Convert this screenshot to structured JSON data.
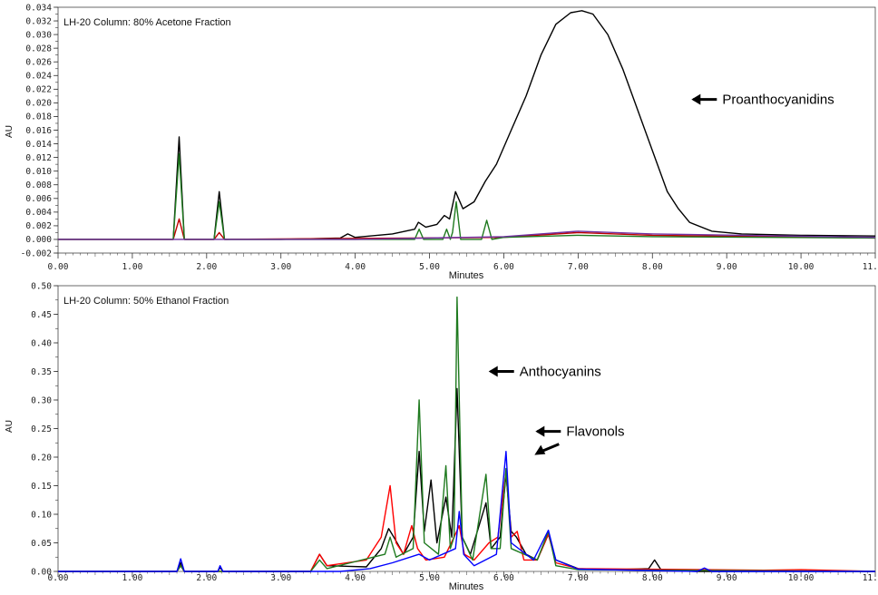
{
  "chart_data": [
    {
      "type": "line",
      "title": "LH-20 Column: 80% Acetone Fraction",
      "xlabel": "Minutes",
      "ylabel": "AU",
      "xlim": [
        0,
        11
      ],
      "ylim": [
        -0.002,
        0.034
      ],
      "x_ticks": [
        "0.00",
        "1.00",
        "2.00",
        "3.00",
        "4.00",
        "5.00",
        "6.00",
        "7.00",
        "8.00",
        "9.00",
        "10.00",
        "11.00"
      ],
      "y_ticks": [
        "-0.002",
        "0.000",
        "0.002",
        "0.004",
        "0.006",
        "0.008",
        "0.010",
        "0.012",
        "0.014",
        "0.016",
        "0.018",
        "0.020",
        "0.022",
        "0.024",
        "0.026",
        "0.028",
        "0.030",
        "0.032",
        "0.034"
      ],
      "grid": false,
      "series": [
        {
          "color": "#000000",
          "points": [
            [
              0,
              0.0
            ],
            [
              1.3,
              0.0
            ],
            [
              1.55,
              0.0
            ],
            [
              1.63,
              0.015
            ],
            [
              1.7,
              0.0
            ],
            [
              2.1,
              0.0
            ],
            [
              2.17,
              0.007
            ],
            [
              2.24,
              0.0
            ],
            [
              3.0,
              0.0
            ],
            [
              3.8,
              0.0002
            ],
            [
              3.9,
              0.0008
            ],
            [
              4.0,
              0.0003
            ],
            [
              4.5,
              0.0008
            ],
            [
              4.8,
              0.0015
            ],
            [
              4.85,
              0.0025
            ],
            [
              4.95,
              0.0018
            ],
            [
              5.1,
              0.0022
            ],
            [
              5.2,
              0.0035
            ],
            [
              5.27,
              0.003
            ],
            [
              5.35,
              0.007
            ],
            [
              5.45,
              0.0045
            ],
            [
              5.6,
              0.0055
            ],
            [
              5.75,
              0.0085
            ],
            [
              5.9,
              0.011
            ],
            [
              6.1,
              0.016
            ],
            [
              6.3,
              0.021
            ],
            [
              6.5,
              0.027
            ],
            [
              6.7,
              0.0315
            ],
            [
              6.9,
              0.0332
            ],
            [
              7.05,
              0.0335
            ],
            [
              7.2,
              0.033
            ],
            [
              7.4,
              0.03
            ],
            [
              7.6,
              0.025
            ],
            [
              7.8,
              0.019
            ],
            [
              8.0,
              0.013
            ],
            [
              8.2,
              0.007
            ],
            [
              8.35,
              0.0045
            ],
            [
              8.5,
              0.0025
            ],
            [
              8.8,
              0.0012
            ],
            [
              9.2,
              0.0008
            ],
            [
              10.0,
              0.0006
            ],
            [
              11.0,
              0.0005
            ]
          ]
        },
        {
          "color": "#c00000",
          "points": [
            [
              0,
              0.0
            ],
            [
              1.55,
              0.0
            ],
            [
              1.63,
              0.003
            ],
            [
              1.7,
              0.0
            ],
            [
              2.1,
              0.0
            ],
            [
              2.17,
              0.001
            ],
            [
              2.24,
              0.0
            ],
            [
              6.0,
              0.0003
            ],
            [
              7.0,
              0.001
            ],
            [
              8.0,
              0.0006
            ],
            [
              11.0,
              0.0002
            ]
          ]
        },
        {
          "color": "#1f7a1f",
          "points": [
            [
              0,
              0.0
            ],
            [
              1.55,
              0.0
            ],
            [
              1.63,
              0.0125
            ],
            [
              1.7,
              0.0
            ],
            [
              2.1,
              0.0
            ],
            [
              2.17,
              0.0055
            ],
            [
              2.24,
              0.0
            ],
            [
              4.8,
              0.0
            ],
            [
              4.86,
              0.0015
            ],
            [
              4.92,
              0.0
            ],
            [
              5.18,
              0.0
            ],
            [
              5.23,
              0.0015
            ],
            [
              5.28,
              0.0
            ],
            [
              5.31,
              0.001
            ],
            [
              5.36,
              0.0055
            ],
            [
              5.42,
              0.0
            ],
            [
              5.7,
              0.0
            ],
            [
              5.77,
              0.0028
            ],
            [
              5.84,
              0.0
            ],
            [
              6.0,
              0.0003
            ],
            [
              7.0,
              0.0006
            ],
            [
              8.0,
              0.0004
            ],
            [
              11.0,
              0.0002
            ]
          ]
        },
        {
          "color": "#7030a0",
          "points": [
            [
              0,
              0.0
            ],
            [
              4.0,
              0.0
            ],
            [
              6.0,
              0.0004
            ],
            [
              7.0,
              0.0012
            ],
            [
              8.0,
              0.0008
            ],
            [
              11.0,
              0.0003
            ]
          ]
        }
      ]
    },
    {
      "type": "line",
      "title": "LH-20 Column: 50% Ethanol Fraction",
      "xlabel": "Minutes",
      "ylabel": "AU",
      "xlim": [
        0,
        11
      ],
      "ylim": [
        0,
        0.5
      ],
      "x_ticks": [
        "0.00",
        "1.00",
        "2.00",
        "3.00",
        "4.00",
        "5.00",
        "6.00",
        "7.00",
        "8.00",
        "9.00",
        "10.00",
        "11.00"
      ],
      "y_ticks": [
        "0.00",
        "0.05",
        "0.10",
        "0.15",
        "0.20",
        "0.25",
        "0.30",
        "0.35",
        "0.40",
        "0.45",
        "0.50"
      ],
      "grid": false,
      "series": [
        {
          "color": "#000000",
          "points": [
            [
              0,
              0.0
            ],
            [
              1.6,
              0.0
            ],
            [
              1.65,
              0.015
            ],
            [
              1.7,
              0.0
            ],
            [
              2.15,
              0.0
            ],
            [
              2.18,
              0.007
            ],
            [
              2.22,
              0.0
            ],
            [
              3.4,
              0.0
            ],
            [
              3.52,
              0.03
            ],
            [
              3.62,
              0.01
            ],
            [
              4.15,
              0.008
            ],
            [
              4.35,
              0.04
            ],
            [
              4.45,
              0.075
            ],
            [
              4.52,
              0.06
            ],
            [
              4.65,
              0.03
            ],
            [
              4.78,
              0.06
            ],
            [
              4.86,
              0.21
            ],
            [
              4.93,
              0.07
            ],
            [
              5.02,
              0.16
            ],
            [
              5.1,
              0.05
            ],
            [
              5.22,
              0.13
            ],
            [
              5.3,
              0.06
            ],
            [
              5.37,
              0.32
            ],
            [
              5.44,
              0.06
            ],
            [
              5.55,
              0.03
            ],
            [
              5.76,
              0.12
            ],
            [
              5.83,
              0.04
            ],
            [
              5.95,
              0.06
            ],
            [
              6.03,
              0.17
            ],
            [
              6.1,
              0.07
            ],
            [
              6.17,
              0.06
            ],
            [
              6.3,
              0.03
            ],
            [
              6.45,
              0.02
            ],
            [
              6.6,
              0.065
            ],
            [
              6.7,
              0.02
            ],
            [
              7.0,
              0.005
            ],
            [
              7.5,
              0.003
            ],
            [
              7.95,
              0.005
            ],
            [
              8.03,
              0.02
            ],
            [
              8.12,
              0.002
            ],
            [
              8.6,
              0.0
            ],
            [
              11.0,
              0.0
            ]
          ]
        },
        {
          "color": "#ff0000",
          "points": [
            [
              0,
              0.0
            ],
            [
              1.6,
              0.0
            ],
            [
              1.65,
              0.01
            ],
            [
              1.7,
              0.0
            ],
            [
              3.4,
              0.0
            ],
            [
              3.52,
              0.03
            ],
            [
              3.62,
              0.01
            ],
            [
              4.15,
              0.02
            ],
            [
              4.35,
              0.06
            ],
            [
              4.47,
              0.15
            ],
            [
              4.55,
              0.05
            ],
            [
              4.65,
              0.03
            ],
            [
              4.76,
              0.08
            ],
            [
              4.84,
              0.04
            ],
            [
              4.95,
              0.02
            ],
            [
              5.2,
              0.025
            ],
            [
              5.33,
              0.06
            ],
            [
              5.4,
              0.08
            ],
            [
              5.47,
              0.03
            ],
            [
              5.6,
              0.02
            ],
            [
              5.8,
              0.05
            ],
            [
              5.92,
              0.06
            ],
            [
              6.03,
              0.175
            ],
            [
              6.1,
              0.06
            ],
            [
              6.18,
              0.07
            ],
            [
              6.27,
              0.02
            ],
            [
              6.45,
              0.02
            ],
            [
              6.6,
              0.065
            ],
            [
              6.7,
              0.015
            ],
            [
              7.0,
              0.005
            ],
            [
              9.5,
              0.002
            ],
            [
              10.0,
              0.003
            ],
            [
              11.0,
              0.0
            ]
          ]
        },
        {
          "color": "#1f7a1f",
          "points": [
            [
              0,
              0.0
            ],
            [
              1.6,
              0.0
            ],
            [
              1.65,
              0.01
            ],
            [
              1.7,
              0.0
            ],
            [
              3.4,
              0.0
            ],
            [
              3.52,
              0.02
            ],
            [
              3.62,
              0.005
            ],
            [
              4.4,
              0.03
            ],
            [
              4.47,
              0.06
            ],
            [
              4.55,
              0.025
            ],
            [
              4.78,
              0.04
            ],
            [
              4.86,
              0.3
            ],
            [
              4.93,
              0.05
            ],
            [
              5.12,
              0.03
            ],
            [
              5.22,
              0.185
            ],
            [
              5.28,
              0.04
            ],
            [
              5.33,
              0.06
            ],
            [
              5.37,
              0.48
            ],
            [
              5.44,
              0.06
            ],
            [
              5.58,
              0.02
            ],
            [
              5.76,
              0.17
            ],
            [
              5.83,
              0.04
            ],
            [
              5.95,
              0.04
            ],
            [
              6.03,
              0.18
            ],
            [
              6.1,
              0.04
            ],
            [
              6.45,
              0.02
            ],
            [
              6.6,
              0.07
            ],
            [
              6.7,
              0.01
            ],
            [
              7.0,
              0.003
            ],
            [
              11.0,
              0.0
            ]
          ]
        },
        {
          "color": "#0000ff",
          "points": [
            [
              0,
              0.0
            ],
            [
              1.6,
              0.0
            ],
            [
              1.65,
              0.022
            ],
            [
              1.7,
              0.0
            ],
            [
              2.15,
              0.0
            ],
            [
              2.18,
              0.01
            ],
            [
              2.22,
              0.0
            ],
            [
              3.8,
              0.0
            ],
            [
              4.2,
              0.005
            ],
            [
              4.5,
              0.015
            ],
            [
              4.86,
              0.03
            ],
            [
              5.0,
              0.02
            ],
            [
              5.35,
              0.04
            ],
            [
              5.4,
              0.105
            ],
            [
              5.46,
              0.03
            ],
            [
              5.6,
              0.01
            ],
            [
              5.9,
              0.03
            ],
            [
              6.03,
              0.21
            ],
            [
              6.1,
              0.05
            ],
            [
              6.4,
              0.02
            ],
            [
              6.6,
              0.072
            ],
            [
              6.7,
              0.02
            ],
            [
              7.0,
              0.004
            ],
            [
              8.6,
              0.0
            ],
            [
              8.7,
              0.006
            ],
            [
              8.8,
              0.0
            ],
            [
              11.0,
              0.0
            ]
          ]
        }
      ]
    }
  ],
  "annotations": [
    {
      "panel": 0,
      "text": "Proanthocyanidins",
      "x": 8.55,
      "y": 0.0205
    },
    {
      "panel": 1,
      "text": "Anthocyanins",
      "x": 5.82,
      "y": 0.35
    },
    {
      "panel": 1,
      "text": "Flavonols",
      "x": 6.45,
      "y": 0.245
    }
  ]
}
